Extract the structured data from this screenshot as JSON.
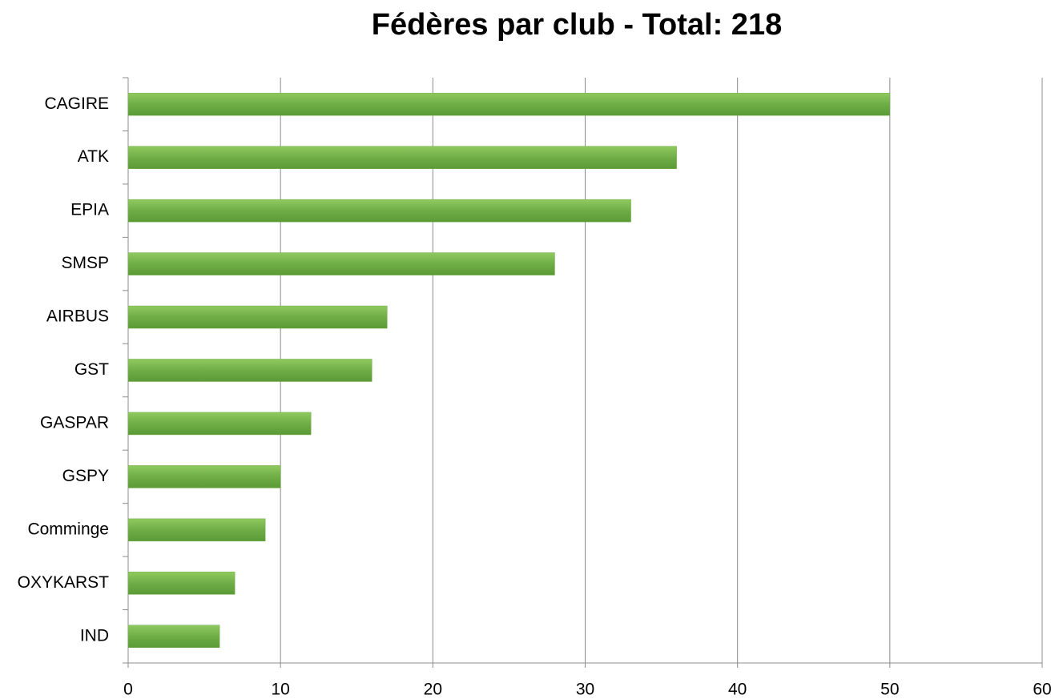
{
  "chart_data": {
    "type": "bar",
    "orientation": "horizontal",
    "title": "Fédères par club - Total: 218",
    "categories": [
      "CAGIRE",
      "ATK",
      "EPIA",
      "SMSP",
      "AIRBUS",
      "GST",
      "GASPAR",
      "GSPY",
      "Comminge",
      "OXYKARST",
      "IND"
    ],
    "values": [
      50,
      36,
      33,
      28,
      17,
      16,
      12,
      10,
      9,
      7,
      6
    ],
    "color": "#70ad47",
    "xlim": [
      0,
      60
    ],
    "xticks": [
      0,
      10,
      20,
      30,
      40,
      50,
      60
    ],
    "grid": true
  }
}
